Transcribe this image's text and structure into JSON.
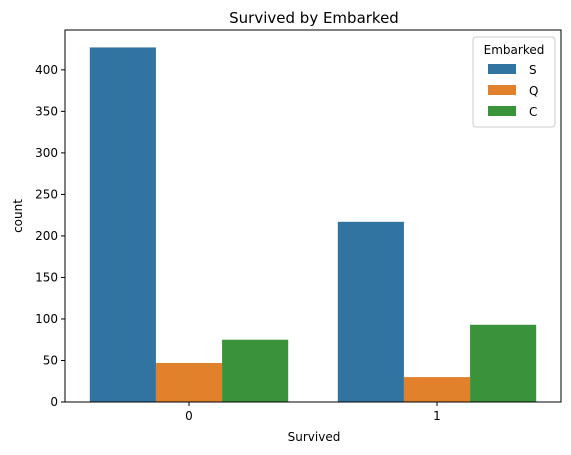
{
  "chart_data": {
    "type": "bar",
    "title": "Survived by Embarked",
    "xlabel": "Survived",
    "ylabel": "count",
    "categories": [
      "0",
      "1"
    ],
    "series": [
      {
        "name": "S",
        "color": "#3274a1",
        "values": [
          427,
          217
        ]
      },
      {
        "name": "Q",
        "color": "#e1812c",
        "values": [
          47,
          30
        ]
      },
      {
        "name": "C",
        "color": "#3a923a",
        "values": [
          75,
          93
        ]
      }
    ],
    "ylim": [
      0,
      448
    ],
    "yticks": [
      0,
      50,
      100,
      150,
      200,
      250,
      300,
      350,
      400
    ],
    "legend": {
      "title": "Embarked",
      "position": "top-right"
    },
    "grid": false
  }
}
